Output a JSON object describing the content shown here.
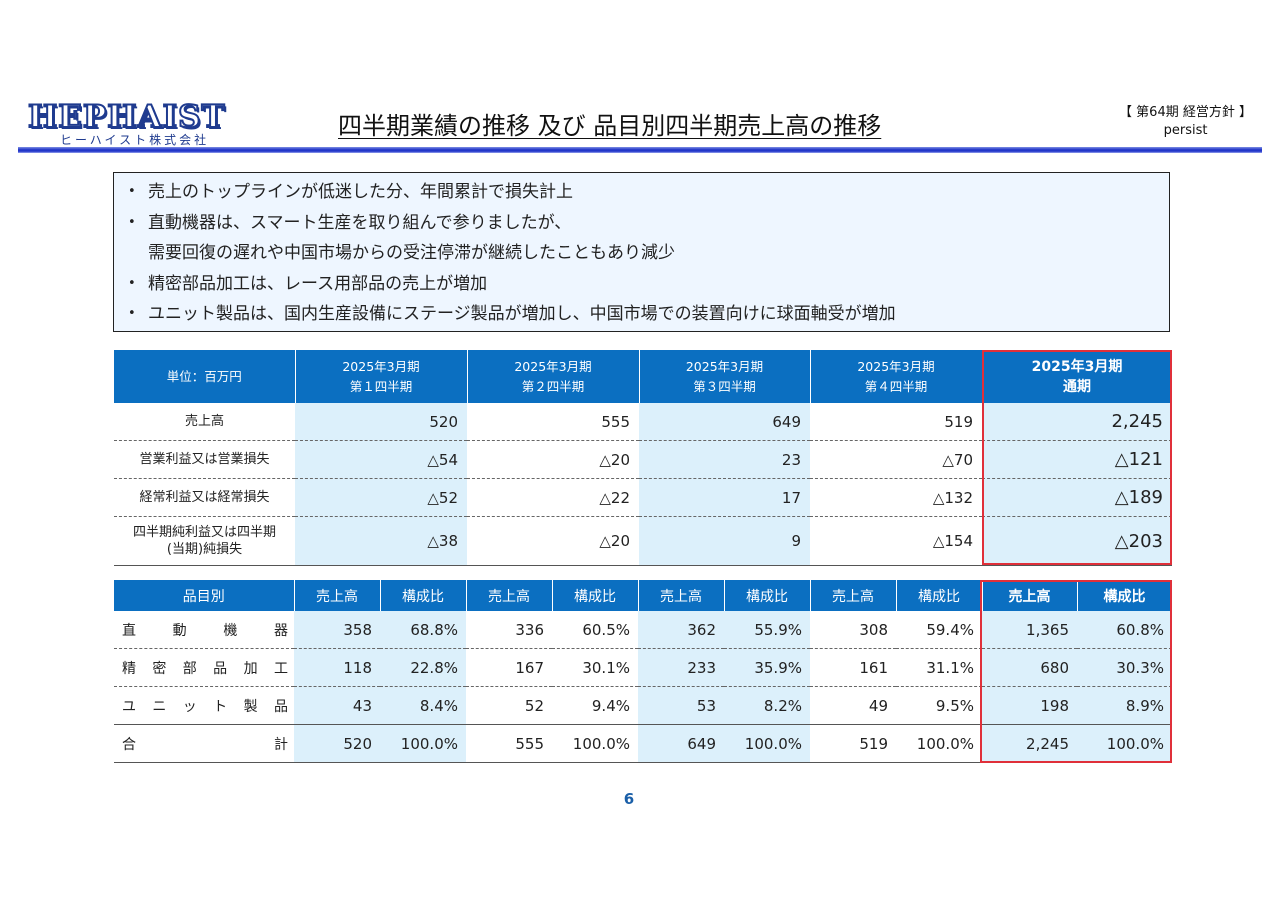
{
  "header": {
    "logo_main": "HEPHAIST",
    "logo_sub": "ヒーハイスト株式会社",
    "title": "四半期業績の推移 及び 品目別四半期売上高の推移",
    "corner_line1": "【 第64期 経営方針 】",
    "corner_line2": "persist"
  },
  "bullets": [
    "売上のトップラインが低迷した分、年間累計で損失計上",
    "直動機器は、スマート生産を取り組んで参りましたが、",
    "需要回復の遅れや中国市場からの受注停滞が継続したこともあり減少",
    "精密部品加工は、レース用部品の売上が増加",
    "ユニット製品は、国内生産設備にステージ製品が増加し、中国市場での装置向けに球面軸受が増加"
  ],
  "table1": {
    "unit": "単位：百万円",
    "columns": [
      {
        "line1": "2025年3月期",
        "line2": "第１四半期"
      },
      {
        "line1": "2025年3月期",
        "line2": "第２四半期"
      },
      {
        "line1": "2025年3月期",
        "line2": "第３四半期"
      },
      {
        "line1": "2025年3月期",
        "line2": "第４四半期"
      },
      {
        "line1": "2025年3月期",
        "line2": "通期"
      }
    ],
    "rows": [
      {
        "label": "売上高",
        "values": [
          "520",
          "555",
          "649",
          "519",
          "2,245"
        ]
      },
      {
        "label": "営業利益又は営業損失",
        "values": [
          "△54",
          "△20",
          "23",
          "△70",
          "△121"
        ]
      },
      {
        "label": "経常利益又は経常損失",
        "values": [
          "△52",
          "△22",
          "17",
          "△132",
          "△189"
        ]
      },
      {
        "label_line1": "四半期純利益又は四半期",
        "label_line2": "(当期)純損失",
        "values": [
          "△38",
          "△20",
          "9",
          "△154",
          "△203"
        ]
      }
    ]
  },
  "table2": {
    "category_header": "品目別",
    "sales_header": "売上高",
    "ratio_header": "構成比",
    "rows": [
      {
        "label": [
          "直",
          "動",
          "機",
          "器"
        ],
        "values": [
          "358",
          "68.8%",
          "336",
          "60.5%",
          "362",
          "55.9%",
          "308",
          "59.4%",
          "1,365",
          "60.8%"
        ]
      },
      {
        "label": [
          "精",
          "密",
          "部",
          "品",
          "加",
          "工"
        ],
        "values": [
          "118",
          "22.8%",
          "167",
          "30.1%",
          "233",
          "35.9%",
          "161",
          "31.1%",
          "680",
          "30.3%"
        ]
      },
      {
        "label": [
          "ユ",
          "ニ",
          "ッ",
          "ト",
          "製",
          "品"
        ],
        "values": [
          "43",
          "8.4%",
          "52",
          "9.4%",
          "53",
          "8.2%",
          "49",
          "9.5%",
          "198",
          "8.9%"
        ]
      },
      {
        "label": [
          "合",
          "計"
        ],
        "values": [
          "520",
          "100.0%",
          "555",
          "100.0%",
          "649",
          "100.0%",
          "519",
          "100.0%",
          "2,245",
          "100.0%"
        ]
      }
    ]
  },
  "page_number": "6",
  "colors": {
    "header_fill": "#0b6fc1",
    "shade": "#dcf0fb",
    "highlight_border": "#e0303a",
    "box_fill": "#eef6ff"
  }
}
